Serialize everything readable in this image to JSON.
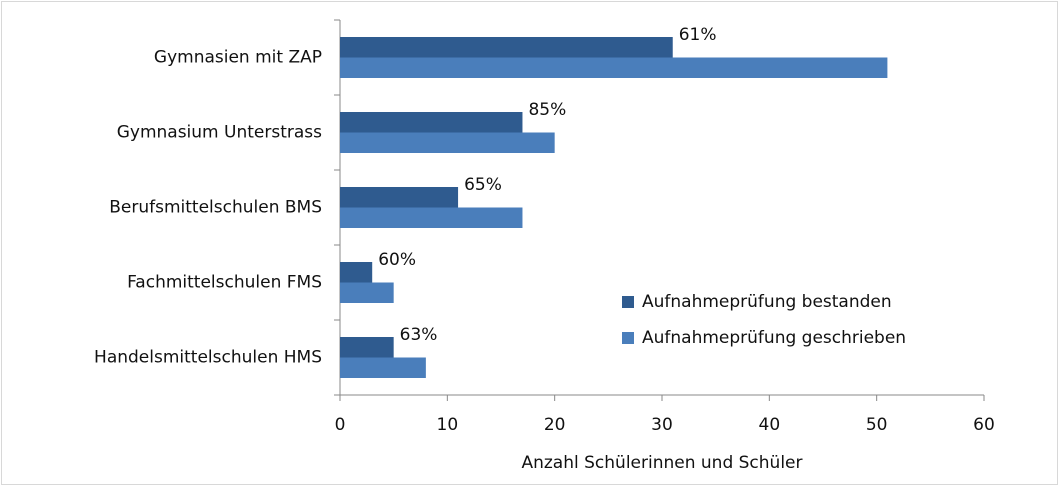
{
  "chart_data": {
    "type": "bar",
    "orientation": "horizontal",
    "categories": [
      "Gymnasien mit ZAP",
      "Gymnasium Unterstrass",
      "Berufsmittelschulen BMS",
      "Fachmittelschulen FMS",
      "Handelsmittelschulen HMS"
    ],
    "series": [
      {
        "name": "Aufnahmeprüfung bestanden",
        "color": "#2f5b8f",
        "values": [
          31,
          17,
          11,
          3,
          5
        ]
      },
      {
        "name": "Aufnahmeprüfung geschrieben",
        "color": "#4a7ebb",
        "values": [
          51,
          20,
          17,
          5,
          8
        ]
      }
    ],
    "annotations": [
      "61%",
      "85%",
      "65%",
      "60%",
      "63%"
    ],
    "xlabel": "Anzahl Schülerinnen und Schüler",
    "xlim": [
      0,
      60
    ],
    "xticks": [
      0,
      10,
      20,
      30,
      40,
      50,
      60
    ],
    "grid": false,
    "legend": "lower right"
  }
}
